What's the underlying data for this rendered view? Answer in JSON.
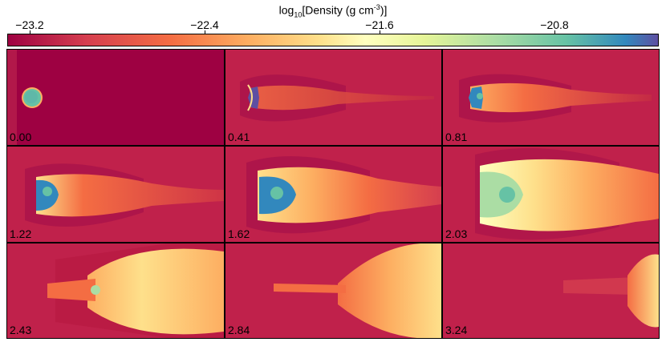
{
  "colorbar": {
    "title_main": "log",
    "title_sub": "10",
    "title_rest": "[Density (g cm",
    "title_sup": "-3",
    "title_end": ")]",
    "ticks": [
      "−23.2",
      "−22.4",
      "−21.6",
      "−20.8"
    ],
    "colormap": [
      "#9e0142",
      "#d53e4f",
      "#f46d43",
      "#fdae61",
      "#fee08b",
      "#ffffbf",
      "#e6f598",
      "#abdda4",
      "#66c2a5",
      "#3288bd",
      "#5e4fa2"
    ]
  },
  "panels": [
    {
      "label": "0.00"
    },
    {
      "label": "0.41"
    },
    {
      "label": "0.81"
    },
    {
      "label": "1.22"
    },
    {
      "label": "1.62"
    },
    {
      "label": "2.03"
    },
    {
      "label": "2.43"
    },
    {
      "label": "2.84"
    },
    {
      "label": "3.24"
    }
  ]
}
